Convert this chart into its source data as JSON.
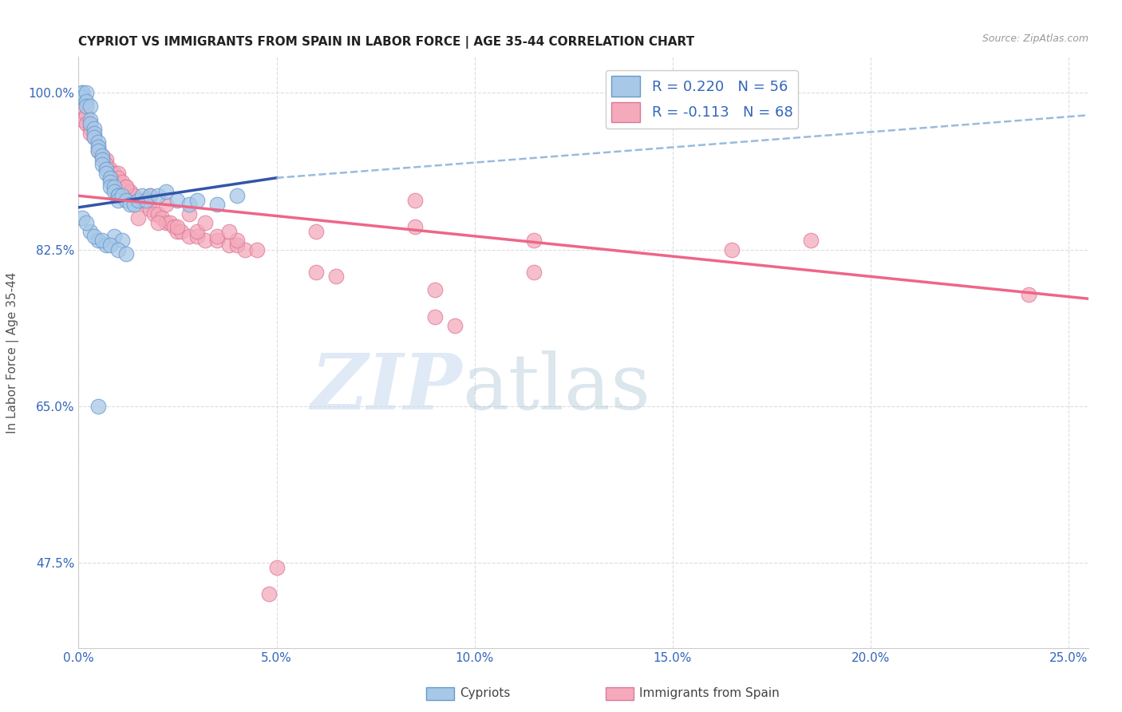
{
  "title": "CYPRIOT VS IMMIGRANTS FROM SPAIN IN LABOR FORCE | AGE 35-44 CORRELATION CHART",
  "source_text": "Source: ZipAtlas.com",
  "ylabel": "In Labor Force | Age 35-44",
  "x_tick_labels": [
    "0.0%",
    "5.0%",
    "10.0%",
    "15.0%",
    "20.0%",
    "25.0%"
  ],
  "x_tick_values": [
    0.0,
    5.0,
    10.0,
    15.0,
    20.0,
    25.0
  ],
  "y_tick_labels": [
    "47.5%",
    "65.0%",
    "82.5%",
    "100.0%"
  ],
  "y_tick_values": [
    47.5,
    65.0,
    82.5,
    100.0
  ],
  "xlim": [
    0.0,
    25.5
  ],
  "ylim": [
    38.0,
    104.0
  ],
  "watermark_zip": "ZIP",
  "watermark_atlas": "atlas",
  "blue_scatter_color": "#a8c8e8",
  "blue_edge_color": "#6699cc",
  "pink_scatter_color": "#f4aabb",
  "pink_edge_color": "#dd7799",
  "blue_line_color": "#3355aa",
  "pink_line_color": "#ee6688",
  "blue_dashed_color": "#99bbdd",
  "grid_color": "#dddddd",
  "background_color": "#ffffff",
  "legend_r1": "R = 0.220",
  "legend_n1": "N = 56",
  "legend_r2": "R = -0.113",
  "legend_n2": "N = 68",
  "cypriot_x": [
    0.1,
    0.1,
    0.1,
    0.2,
    0.2,
    0.2,
    0.3,
    0.3,
    0.3,
    0.4,
    0.4,
    0.4,
    0.5,
    0.5,
    0.5,
    0.6,
    0.6,
    0.6,
    0.7,
    0.7,
    0.8,
    0.8,
    0.8,
    0.9,
    0.9,
    1.0,
    1.0,
    1.0,
    1.1,
    1.2,
    1.3,
    1.4,
    1.5,
    1.6,
    1.7,
    1.8,
    2.0,
    2.2,
    2.5,
    2.8,
    3.0,
    0.3,
    0.5,
    0.7,
    0.9,
    1.1,
    0.1,
    0.2,
    0.4,
    0.6,
    0.8,
    1.0,
    1.2,
    3.5,
    4.0,
    0.5
  ],
  "cypriot_y": [
    100.0,
    100.0,
    99.5,
    100.0,
    99.0,
    98.5,
    98.5,
    97.0,
    96.5,
    96.0,
    95.5,
    95.0,
    94.5,
    94.0,
    93.5,
    93.0,
    92.5,
    92.0,
    91.5,
    91.0,
    90.5,
    90.0,
    89.5,
    89.5,
    89.0,
    88.5,
    88.5,
    88.0,
    88.5,
    88.0,
    87.5,
    87.5,
    88.0,
    88.5,
    88.0,
    88.5,
    88.5,
    89.0,
    88.0,
    87.5,
    88.0,
    84.5,
    83.5,
    83.0,
    84.0,
    83.5,
    86.0,
    85.5,
    84.0,
    83.5,
    83.0,
    82.5,
    82.0,
    87.5,
    88.5,
    65.0
  ],
  "spain_x": [
    0.1,
    0.1,
    0.2,
    0.2,
    0.3,
    0.3,
    0.4,
    0.5,
    0.5,
    0.6,
    0.7,
    0.7,
    0.8,
    0.9,
    1.0,
    1.0,
    1.1,
    1.2,
    1.3,
    1.4,
    1.5,
    1.6,
    1.7,
    1.8,
    1.9,
    2.0,
    2.1,
    2.2,
    2.3,
    2.4,
    2.5,
    2.6,
    2.8,
    3.0,
    3.2,
    3.5,
    3.8,
    4.0,
    4.2,
    4.5,
    1.5,
    2.0,
    2.5,
    3.0,
    3.5,
    4.0,
    0.8,
    1.2,
    1.8,
    2.2,
    2.8,
    3.2,
    3.8,
    6.0,
    8.5,
    8.5,
    11.5,
    11.5,
    16.5,
    18.5,
    24.0,
    9.0,
    9.5,
    9.0,
    6.5,
    6.0,
    5.0,
    4.8
  ],
  "spain_y": [
    98.5,
    97.0,
    97.5,
    96.5,
    96.0,
    95.5,
    95.0,
    94.0,
    93.5,
    93.0,
    92.5,
    92.0,
    91.5,
    91.0,
    91.0,
    90.5,
    90.0,
    89.5,
    89.0,
    88.5,
    88.0,
    88.0,
    87.5,
    87.0,
    86.5,
    86.5,
    86.0,
    85.5,
    85.5,
    85.0,
    84.5,
    84.5,
    84.0,
    84.0,
    83.5,
    83.5,
    83.0,
    83.0,
    82.5,
    82.5,
    86.0,
    85.5,
    85.0,
    84.5,
    84.0,
    83.5,
    90.5,
    89.5,
    88.5,
    87.5,
    86.5,
    85.5,
    84.5,
    84.5,
    88.0,
    85.0,
    80.0,
    83.5,
    82.5,
    83.5,
    77.5,
    75.0,
    74.0,
    78.0,
    79.5,
    80.0,
    47.0,
    44.0
  ],
  "blue_trendline": [
    0.0,
    87.2,
    5.0,
    90.5
  ],
  "blue_dashed": [
    5.0,
    90.5,
    25.5,
    97.5
  ],
  "pink_trendline": [
    0.0,
    88.5,
    25.5,
    77.0
  ]
}
